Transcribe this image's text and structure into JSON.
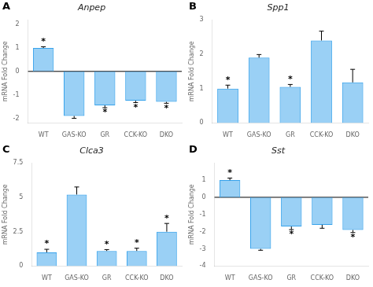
{
  "chart_data": [
    {
      "type": "bar",
      "panel_label": "A",
      "title": "Anpep",
      "ylabel": "mRNA Fold Change",
      "categories": [
        "WT",
        "GAS-KO",
        "GR",
        "CCK-KO",
        "DKO"
      ],
      "values": [
        1.0,
        -1.9,
        -1.45,
        -1.25,
        -1.3
      ],
      "errors": [
        0.05,
        0.1,
        0.1,
        0.08,
        0.06
      ],
      "annotations": [
        {
          "category": "WT",
          "text": "*"
        },
        {
          "category": "GR",
          "text": "*"
        },
        {
          "category": "CCK-KO",
          "text": "*"
        },
        {
          "category": "DKO",
          "text": "*"
        }
      ],
      "ylim": [
        -2.2,
        2.2
      ],
      "yticks": [
        -2,
        -1,
        0,
        1,
        2
      ],
      "grid": false
    },
    {
      "type": "bar",
      "panel_label": "B",
      "title": "Spp1",
      "ylabel": "mRNA Fold Change",
      "categories": [
        "WT",
        "GAS-KO",
        "GR",
        "CCK-KO",
        "DKO"
      ],
      "values": [
        1.0,
        1.9,
        1.05,
        2.4,
        1.18
      ],
      "errors": [
        0.1,
        0.09,
        0.07,
        0.27,
        0.38
      ],
      "annotations": [
        {
          "category": "WT",
          "text": "*"
        },
        {
          "category": "GR",
          "text": "*"
        }
      ],
      "ylim": [
        0,
        3.0
      ],
      "yticks": [
        0,
        1,
        2,
        3
      ],
      "grid": false
    },
    {
      "type": "bar",
      "panel_label": "C",
      "title": "Clca3",
      "ylabel": "mRNA Fold Change",
      "categories": [
        "WT",
        "GAS-KO",
        "GR",
        "CCK-KO",
        "DKO"
      ],
      "values": [
        1.0,
        5.2,
        1.1,
        1.1,
        2.5
      ],
      "errors": [
        0.22,
        0.55,
        0.1,
        0.2,
        0.6
      ],
      "annotations": [
        {
          "category": "WT",
          "text": "*"
        },
        {
          "category": "GR",
          "text": "*"
        },
        {
          "category": "CCK-KO",
          "text": "*"
        },
        {
          "category": "DKO",
          "text": "*"
        }
      ],
      "ylim": [
        0,
        7.5
      ],
      "yticks": [
        0,
        2.5,
        5,
        7.5
      ],
      "grid": false
    },
    {
      "type": "bar",
      "panel_label": "D",
      "title": "Sst",
      "ylabel": "mRNA Fold Change",
      "categories": [
        "WT",
        "GAS-KO",
        "GR",
        "CCK-KO",
        "DKO"
      ],
      "values": [
        1.0,
        -3.0,
        -1.7,
        -1.6,
        -1.9
      ],
      "errors": [
        0.12,
        0.08,
        0.18,
        0.2,
        0.15
      ],
      "annotations": [
        {
          "category": "WT",
          "text": "*"
        },
        {
          "category": "GR",
          "text": "*"
        },
        {
          "category": "DKO",
          "text": "*"
        }
      ],
      "ylim": [
        -4.0,
        2.0
      ],
      "yticks": [
        -4,
        -3,
        -2,
        -1,
        0,
        1
      ],
      "grid": false
    }
  ]
}
